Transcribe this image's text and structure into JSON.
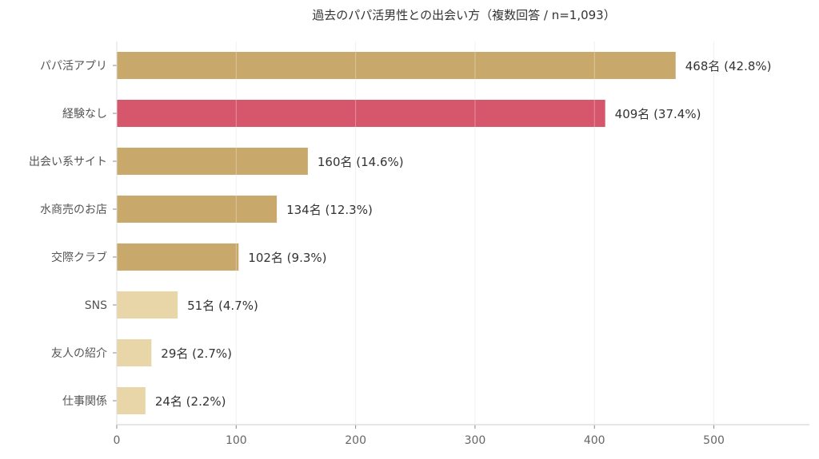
{
  "chart_data": {
    "type": "bar",
    "orientation": "horizontal",
    "title": "過去のパパ活男性との出会い方（複数回答 / n=1,093）",
    "xlabel": "",
    "ylabel": "",
    "categories": [
      "パパ活アプリ",
      "経験なし",
      "出会い系サイト",
      "水商売のお店",
      "交際クラブ",
      "SNS",
      "友人の紹介",
      "仕事関係"
    ],
    "values": [
      468,
      409,
      160,
      134,
      102,
      51,
      29,
      24
    ],
    "data_labels": [
      "468名 (42.8%)",
      "409名 (37.4%)",
      "160名 (14.6%)",
      "134名 (12.3%)",
      "102名 (9.3%)",
      "51名 (4.7%)",
      "29名 (2.7%)",
      "24名 (2.2%)"
    ],
    "bar_colors": [
      "#C8A96B",
      "#D6566C",
      "#C8A96B",
      "#C8A96B",
      "#C8A96B",
      "#E8D5A8",
      "#E8D5A8",
      "#E8D5A8"
    ],
    "xlim": [
      0,
      580
    ],
    "xticks": [
      0,
      100,
      200,
      300,
      400,
      500
    ],
    "grid": "vertical",
    "legend": "none"
  }
}
